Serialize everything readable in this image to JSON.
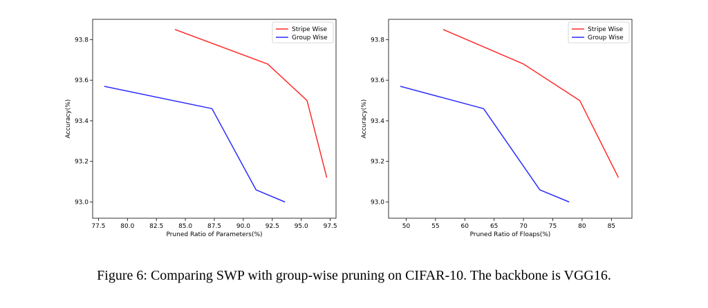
{
  "caption": "Figure 6: Comparing SWP with group-wise pruning on CIFAR-10. The backbone is VGG16.",
  "colors": {
    "stripe": "#ff2a2a",
    "group": "#2a2aff"
  },
  "chart_data": [
    {
      "type": "line",
      "title": "",
      "xlabel": "Pruned Ratio of Parameters(%)",
      "ylabel": "Accuracy(%)",
      "xlim": [
        77.0,
        98.0
      ],
      "ylim": [
        92.92,
        93.9
      ],
      "xticks": [
        77.5,
        80.0,
        82.5,
        85.0,
        87.5,
        90.0,
        92.5,
        95.0,
        97.5
      ],
      "xtick_labels": [
        "77.5",
        "80.0",
        "82.5",
        "85.0",
        "87.5",
        "90.0",
        "92.5",
        "95.0",
        "97.5"
      ],
      "yticks": [
        93.0,
        93.2,
        93.4,
        93.6,
        93.8
      ],
      "ytick_labels": [
        "93.0",
        "93.2",
        "93.4",
        "93.6",
        "93.8"
      ],
      "legend": "top-right",
      "grid": false,
      "series": [
        {
          "name": "Stripe Wise",
          "color": "#ff2a2a",
          "x": [
            84.1,
            92.1,
            95.5,
            97.2
          ],
          "y": [
            93.85,
            93.68,
            93.5,
            93.12
          ]
        },
        {
          "name": "Group Wise",
          "color": "#2a2aff",
          "x": [
            78.0,
            87.3,
            91.1,
            93.6
          ],
          "y": [
            93.57,
            93.46,
            93.06,
            93.0
          ]
        }
      ]
    },
    {
      "type": "line",
      "title": "",
      "xlabel": "Pruned Ratio of Floaps(%)",
      "ylabel": "Accuracy(%)",
      "xlim": [
        47.0,
        88.5
      ],
      "ylim": [
        92.92,
        93.9
      ],
      "xticks": [
        50,
        55,
        60,
        65,
        70,
        75,
        80,
        85
      ],
      "xtick_labels": [
        "50",
        "55",
        "60",
        "65",
        "70",
        "75",
        "80",
        "85"
      ],
      "yticks": [
        93.0,
        93.2,
        93.4,
        93.6,
        93.8
      ],
      "ytick_labels": [
        "93.0",
        "93.2",
        "93.4",
        "93.6",
        "93.8"
      ],
      "legend": "top-right",
      "grid": false,
      "series": [
        {
          "name": "Stripe Wise",
          "color": "#ff2a2a",
          "x": [
            56.3,
            70.0,
            79.6,
            86.2
          ],
          "y": [
            93.85,
            93.68,
            93.5,
            93.12
          ]
        },
        {
          "name": "Group Wise",
          "color": "#2a2aff",
          "x": [
            49.0,
            63.2,
            72.8,
            77.8
          ],
          "y": [
            93.57,
            93.46,
            93.06,
            93.0
          ]
        }
      ]
    }
  ]
}
